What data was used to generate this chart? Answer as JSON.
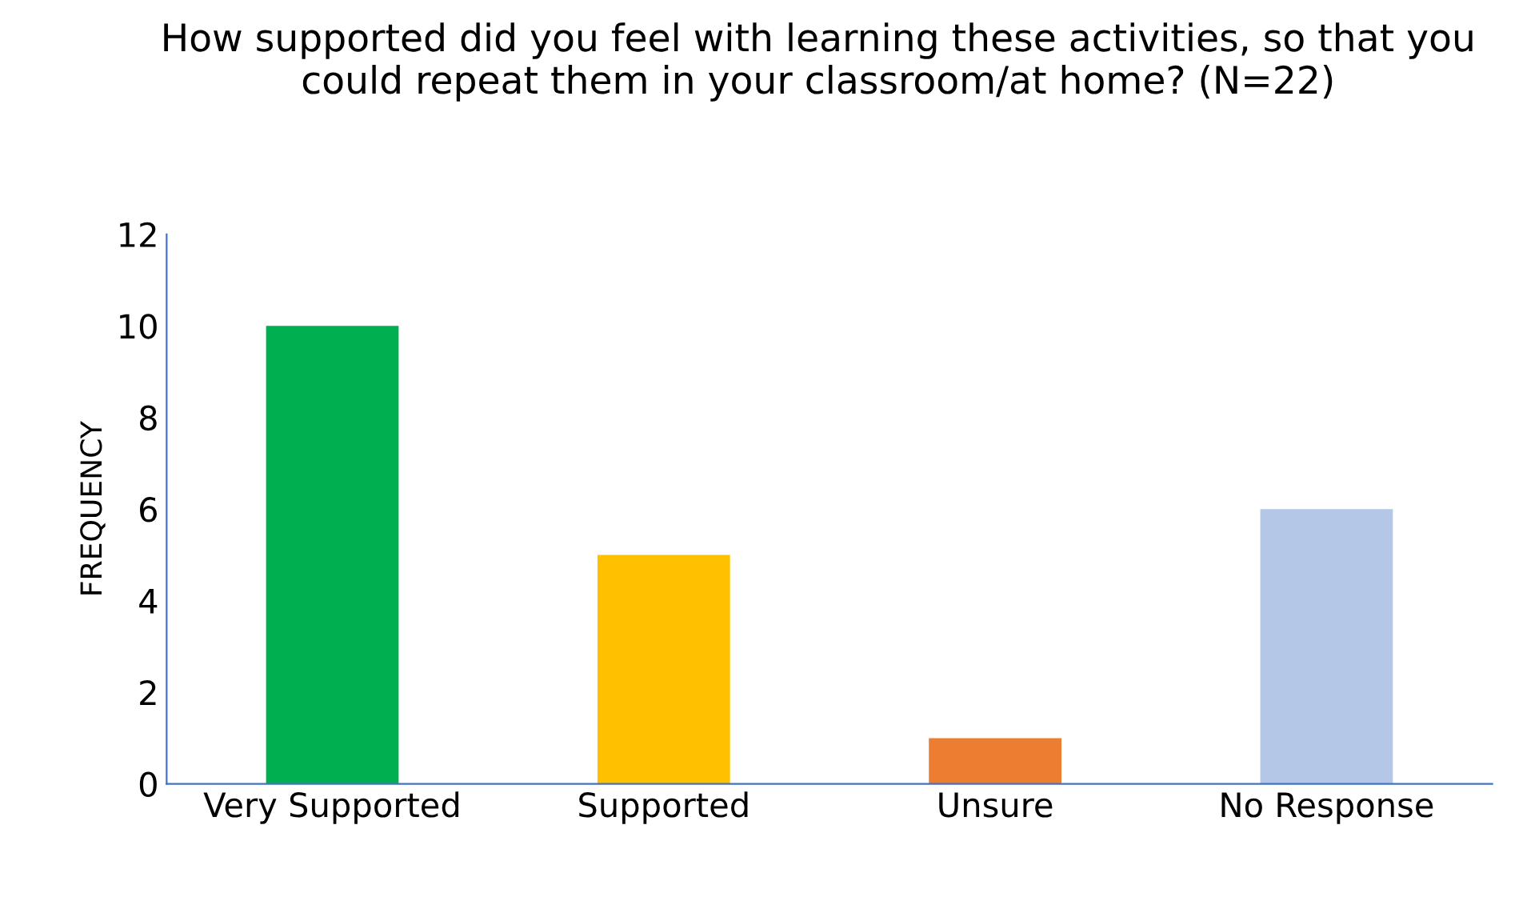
{
  "chart_data": {
    "type": "bar",
    "title": "How supported did you feel with learning these activities, so that you could repeat them in your classroom/at home? (N=22)",
    "ylabel": "FREQUENCY",
    "categories": [
      "Very Supported",
      "Supported",
      "Unsure",
      "No Response"
    ],
    "values": [
      10,
      5,
      1,
      6
    ],
    "colors": [
      "#00b050",
      "#ffc000",
      "#ed7d31",
      "#b4c7e7"
    ],
    "ylim": [
      0,
      12
    ],
    "yticks": [
      0,
      2,
      4,
      6,
      8,
      10,
      12
    ],
    "grid": false,
    "legend": false
  }
}
